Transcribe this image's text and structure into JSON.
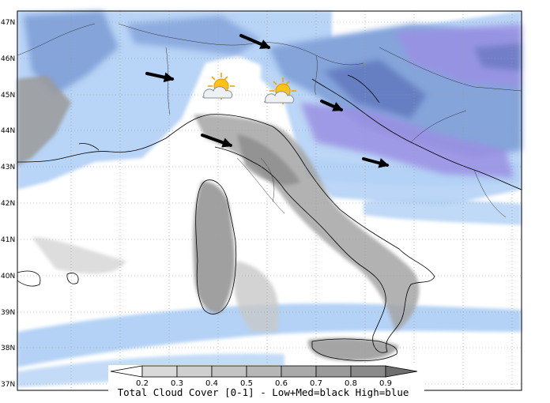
{
  "latitude_labels": [
    "47N",
    "46N",
    "45N",
    "44N",
    "43N",
    "42N",
    "41N",
    "40N",
    "39N",
    "38N",
    "37N"
  ],
  "colorbar": {
    "ticks": [
      "0.2",
      "0.3",
      "0.4",
      "0.5",
      "0.6",
      "0.7",
      "0.8",
      "0.9"
    ],
    "colors": [
      "#d9d9d9",
      "#cfcfcf",
      "#c3c3c3",
      "#b6b6b6",
      "#a9a9a9",
      "#9a9a9a",
      "#8a8a8a"
    ],
    "title": "Total Cloud Cover [0-1] - Low+Med=black High=blue"
  },
  "colors": {
    "high_cloud_light": "#b4d2f5",
    "high_cloud_mid": "#7e9ed7",
    "high_cloud_purple": "#9a8fe3",
    "high_cloud_dark": "#5a6fb8",
    "low_cloud": "#8c8c8c",
    "coast": "#000000",
    "grid": "#9a9a9a"
  },
  "weather_icons": [
    "partly-cloudy-sun-icon",
    "partly-cloudy-sun-icon"
  ],
  "wind_arrows": 6
}
